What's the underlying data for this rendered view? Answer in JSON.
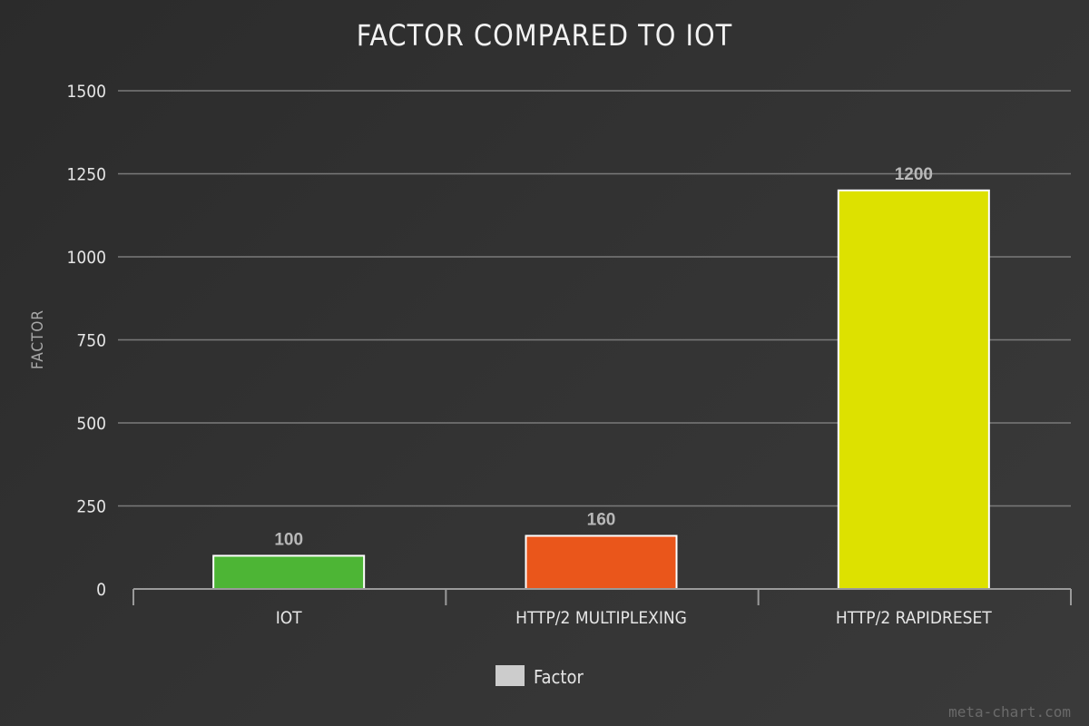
{
  "chart_data": {
    "type": "bar",
    "title": "FACTOR COMPARED TO IOT",
    "ylabel": "FACTOR",
    "xlabel": "",
    "categories": [
      "IOT",
      "HTTP/2 MULTIPLEXING",
      "HTTP/2 RAPIDRESET"
    ],
    "series": [
      {
        "name": "Factor",
        "values": [
          100,
          160,
          1200
        ],
        "colors": [
          "#4db535",
          "#ea561b",
          "#dde100"
        ]
      }
    ],
    "data_labels": [
      "100",
      "160",
      "1200"
    ],
    "ylim": [
      0,
      1500
    ],
    "yticks": [
      0,
      250,
      500,
      750,
      1000,
      1250,
      1500
    ],
    "ytick_labels": [
      "0",
      "250",
      "500",
      "750",
      "1000",
      "1250",
      "1500"
    ],
    "grid": true,
    "legend_position": "bottom-center",
    "legend_color": "#cccccc"
  },
  "credit": "meta-chart.com"
}
